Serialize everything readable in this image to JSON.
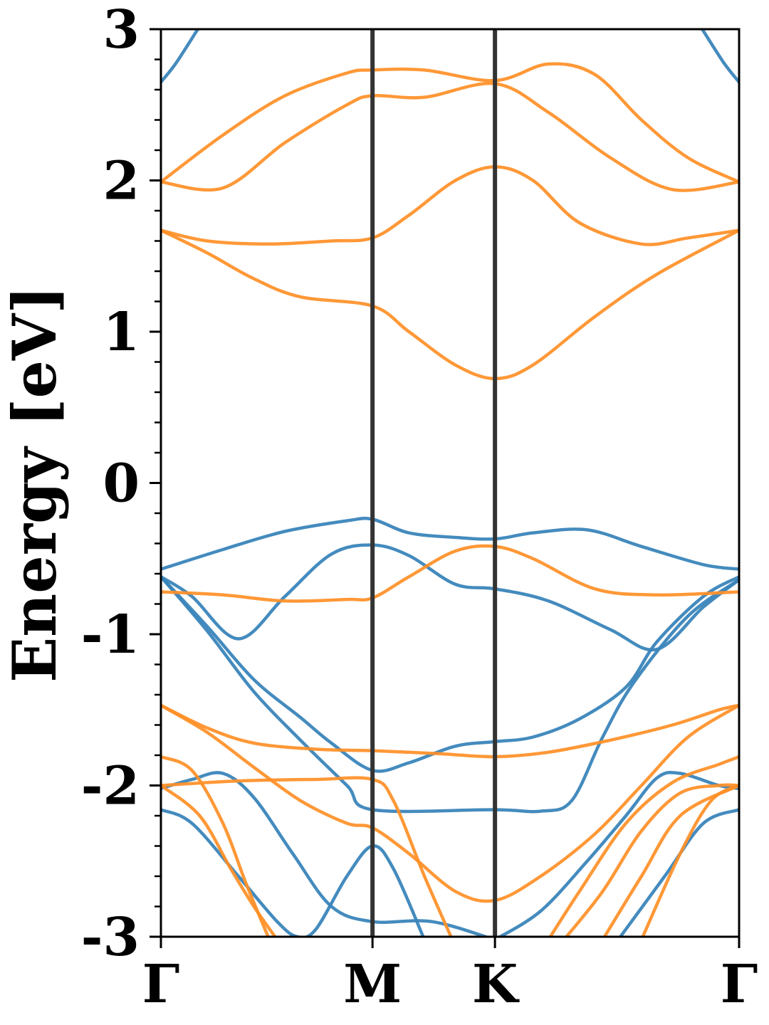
{
  "chart_data": {
    "type": "line",
    "title": "",
    "xlabel": "",
    "ylabel": "Energy [eV]",
    "ylim": [
      -3,
      3
    ],
    "xlim": [
      0,
      3.73
    ],
    "grid": false,
    "legend": "none",
    "y_ticks": [
      {
        "value": -3,
        "label": "-3"
      },
      {
        "value": -2,
        "label": "-2"
      },
      {
        "value": -1,
        "label": "-1"
      },
      {
        "value": 0,
        "label": "0"
      },
      {
        "value": 1,
        "label": "1"
      },
      {
        "value": 2,
        "label": "2"
      },
      {
        "value": 3,
        "label": "3"
      }
    ],
    "k_points": [
      {
        "label": "Γ",
        "x": 0
      },
      {
        "label": "M",
        "x": 1.365
      },
      {
        "label": "K",
        "x": 2.155
      },
      {
        "label": "Γ",
        "x": 3.73
      }
    ],
    "colors": {
      "band_a": "#3a85bb",
      "band_b": "#ff8f26",
      "divider": "#333333"
    },
    "series": [
      {
        "color_key": "band_a",
        "points": [
          [
            0,
            -0.57
          ],
          [
            0.4,
            -0.44
          ],
          [
            0.8,
            -0.32
          ],
          [
            1.2,
            -0.25
          ],
          [
            1.365,
            -0.24
          ],
          [
            1.6,
            -0.33
          ],
          [
            1.9,
            -0.36
          ],
          [
            2.155,
            -0.37
          ],
          [
            2.4,
            -0.33
          ],
          [
            2.75,
            -0.31
          ],
          [
            3.1,
            -0.42
          ],
          [
            3.5,
            -0.54
          ],
          [
            3.73,
            -0.57
          ]
        ]
      },
      {
        "color_key": "band_a",
        "points": [
          [
            0,
            -0.62
          ],
          [
            0.2,
            -0.75
          ],
          [
            0.5,
            -1.03
          ],
          [
            0.8,
            -0.75
          ],
          [
            1.1,
            -0.47
          ],
          [
            1.365,
            -0.41
          ],
          [
            1.6,
            -0.48
          ],
          [
            1.9,
            -0.67
          ],
          [
            2.155,
            -0.7
          ],
          [
            2.5,
            -0.78
          ],
          [
            2.9,
            -0.97
          ],
          [
            3.2,
            -1.1
          ],
          [
            3.5,
            -0.82
          ],
          [
            3.73,
            -0.64
          ]
        ]
      },
      {
        "color_key": "band_a",
        "points": [
          [
            0,
            -0.62
          ],
          [
            0.3,
            -0.95
          ],
          [
            0.6,
            -1.3
          ],
          [
            0.9,
            -1.55
          ],
          [
            1.1,
            -1.72
          ],
          [
            1.365,
            -1.9
          ],
          [
            1.6,
            -1.85
          ],
          [
            1.9,
            -1.74
          ],
          [
            2.155,
            -1.71
          ],
          [
            2.4,
            -1.68
          ],
          [
            2.7,
            -1.56
          ],
          [
            3.0,
            -1.35
          ],
          [
            3.2,
            -1.05
          ],
          [
            3.5,
            -0.75
          ],
          [
            3.73,
            -0.62
          ]
        ]
      },
      {
        "color_key": "band_a",
        "points": [
          [
            0,
            -0.62
          ],
          [
            0.3,
            -0.98
          ],
          [
            0.6,
            -1.38
          ],
          [
            0.9,
            -1.7
          ],
          [
            1.2,
            -2.0
          ],
          [
            1.365,
            -2.16
          ],
          [
            2.155,
            -2.16
          ],
          [
            2.45,
            -2.17
          ],
          [
            2.65,
            -2.1
          ],
          [
            2.85,
            -1.68
          ],
          [
            3.05,
            -1.32
          ],
          [
            3.4,
            -0.88
          ],
          [
            3.73,
            -0.64
          ]
        ]
      },
      {
        "color_key": "band_a",
        "points": [
          [
            0,
            -2.02
          ],
          [
            0.2,
            -1.96
          ],
          [
            0.4,
            -1.92
          ],
          [
            0.6,
            -2.08
          ],
          [
            0.85,
            -2.45
          ],
          [
            1.1,
            -2.8
          ],
          [
            1.365,
            -2.9
          ],
          [
            1.75,
            -2.9
          ],
          [
            2.155,
            -3.02
          ]
        ]
      },
      {
        "color_key": "band_a",
        "points": [
          [
            2.155,
            -3.02
          ],
          [
            2.45,
            -2.83
          ],
          [
            2.75,
            -2.5
          ],
          [
            3.0,
            -2.2
          ],
          [
            3.2,
            -1.95
          ],
          [
            3.35,
            -1.92
          ],
          [
            3.6,
            -2.0
          ],
          [
            3.73,
            -2.02
          ]
        ]
      },
      {
        "color_key": "band_a",
        "points": [
          [
            0,
            -2.16
          ],
          [
            0.2,
            -2.25
          ],
          [
            0.5,
            -2.6
          ],
          [
            0.75,
            -2.9
          ],
          [
            0.88,
            -3.0
          ],
          [
            1.0,
            -2.95
          ],
          [
            1.2,
            -2.6
          ],
          [
            1.365,
            -2.4
          ],
          [
            1.5,
            -2.55
          ],
          [
            1.7,
            -3.02
          ]
        ]
      },
      {
        "color_key": "band_a",
        "points": [
          [
            2.95,
            -3.02
          ],
          [
            3.25,
            -2.6
          ],
          [
            3.5,
            -2.25
          ],
          [
            3.73,
            -2.16
          ]
        ]
      },
      {
        "color_key": "band_a",
        "points": [
          [
            0,
            2.65
          ],
          [
            0.1,
            2.78
          ],
          [
            0.25,
            3.02
          ]
        ]
      },
      {
        "color_key": "band_a",
        "points": [
          [
            3.48,
            3.02
          ],
          [
            3.63,
            2.78
          ],
          [
            3.73,
            2.65
          ]
        ]
      },
      {
        "color_key": "band_b",
        "points": [
          [
            0,
            1.99
          ],
          [
            0.4,
            2.3
          ],
          [
            0.8,
            2.56
          ],
          [
            1.2,
            2.71
          ],
          [
            1.365,
            2.73
          ],
          [
            1.7,
            2.73
          ],
          [
            2.155,
            2.66
          ],
          [
            2.5,
            2.77
          ],
          [
            2.8,
            2.7
          ],
          [
            3.1,
            2.4
          ],
          [
            3.4,
            2.15
          ],
          [
            3.73,
            1.99
          ]
        ]
      },
      {
        "color_key": "band_b",
        "points": [
          [
            0,
            1.99
          ],
          [
            0.4,
            1.95
          ],
          [
            0.8,
            2.25
          ],
          [
            1.2,
            2.5
          ],
          [
            1.365,
            2.56
          ],
          [
            1.7,
            2.55
          ],
          [
            2.155,
            2.64
          ],
          [
            2.5,
            2.45
          ],
          [
            2.9,
            2.15
          ],
          [
            3.3,
            1.94
          ],
          [
            3.73,
            1.99
          ]
        ]
      },
      {
        "color_key": "band_b",
        "points": [
          [
            0,
            1.67
          ],
          [
            0.3,
            1.6
          ],
          [
            0.7,
            1.58
          ],
          [
            1.1,
            1.6
          ],
          [
            1.365,
            1.62
          ],
          [
            1.6,
            1.77
          ],
          [
            1.9,
            2.0
          ],
          [
            2.155,
            2.09
          ],
          [
            2.4,
            2.0
          ],
          [
            2.7,
            1.72
          ],
          [
            3.1,
            1.58
          ],
          [
            3.4,
            1.62
          ],
          [
            3.73,
            1.67
          ]
        ]
      },
      {
        "color_key": "band_b",
        "points": [
          [
            0,
            1.67
          ],
          [
            0.3,
            1.52
          ],
          [
            0.6,
            1.35
          ],
          [
            0.9,
            1.23
          ],
          [
            1.365,
            1.17
          ],
          [
            1.6,
            1.0
          ],
          [
            1.9,
            0.78
          ],
          [
            2.155,
            0.69
          ],
          [
            2.4,
            0.78
          ],
          [
            2.8,
            1.1
          ],
          [
            3.2,
            1.38
          ],
          [
            3.73,
            1.67
          ]
        ]
      },
      {
        "color_key": "band_b",
        "points": [
          [
            0,
            -0.72
          ],
          [
            0.4,
            -0.74
          ],
          [
            0.8,
            -0.78
          ],
          [
            1.2,
            -0.77
          ],
          [
            1.365,
            -0.76
          ],
          [
            1.6,
            -0.62
          ],
          [
            1.9,
            -0.45
          ],
          [
            2.155,
            -0.42
          ],
          [
            2.4,
            -0.5
          ],
          [
            2.8,
            -0.7
          ],
          [
            3.2,
            -0.74
          ],
          [
            3.73,
            -0.72
          ]
        ]
      },
      {
        "color_key": "band_b",
        "points": [
          [
            0,
            -1.47
          ],
          [
            0.3,
            -1.62
          ],
          [
            0.6,
            -1.72
          ],
          [
            1.0,
            -1.76
          ],
          [
            1.365,
            -1.77
          ],
          [
            1.8,
            -1.79
          ],
          [
            2.155,
            -1.81
          ],
          [
            2.5,
            -1.78
          ],
          [
            2.9,
            -1.7
          ],
          [
            3.3,
            -1.6
          ],
          [
            3.6,
            -1.5
          ],
          [
            3.73,
            -1.47
          ]
        ]
      },
      {
        "color_key": "band_b",
        "points": [
          [
            0,
            -1.47
          ],
          [
            0.3,
            -1.65
          ],
          [
            0.6,
            -1.88
          ],
          [
            0.9,
            -2.1
          ],
          [
            1.2,
            -2.25
          ],
          [
            1.365,
            -2.28
          ],
          [
            1.6,
            -2.45
          ],
          [
            1.9,
            -2.7
          ],
          [
            2.155,
            -2.76
          ],
          [
            2.45,
            -2.6
          ],
          [
            2.8,
            -2.32
          ],
          [
            3.1,
            -2.0
          ],
          [
            3.4,
            -1.68
          ],
          [
            3.73,
            -1.47
          ]
        ]
      },
      {
        "color_key": "band_b",
        "points": [
          [
            0,
            -1.81
          ],
          [
            0.2,
            -1.9
          ],
          [
            0.4,
            -2.25
          ],
          [
            0.55,
            -2.65
          ],
          [
            0.7,
            -3.02
          ]
        ]
      },
      {
        "color_key": "band_b",
        "points": [
          [
            2.5,
            -3.02
          ],
          [
            2.7,
            -2.7
          ],
          [
            3.0,
            -2.25
          ],
          [
            3.3,
            -1.98
          ],
          [
            3.6,
            -1.86
          ],
          [
            3.73,
            -1.81
          ]
        ]
      },
      {
        "color_key": "band_b",
        "points": [
          [
            0,
            -2.0
          ],
          [
            0.5,
            -1.97
          ],
          [
            1.0,
            -1.96
          ],
          [
            1.365,
            -1.96
          ],
          [
            1.5,
            -2.1
          ],
          [
            1.7,
            -2.6
          ],
          [
            1.88,
            -3.02
          ]
        ]
      },
      {
        "color_key": "band_b",
        "points": [
          [
            0,
            -2.0
          ],
          [
            0.25,
            -2.2
          ],
          [
            0.45,
            -2.55
          ],
          [
            0.6,
            -2.8
          ],
          [
            0.75,
            -3.02
          ]
        ]
      },
      {
        "color_key": "band_b",
        "points": [
          [
            2.6,
            -3.02
          ],
          [
            2.85,
            -2.7
          ],
          [
            3.1,
            -2.3
          ],
          [
            3.35,
            -2.05
          ],
          [
            3.6,
            -2.0
          ],
          [
            3.73,
            -2.0
          ]
        ]
      },
      {
        "color_key": "band_b",
        "points": [
          [
            2.85,
            -3.02
          ],
          [
            3.1,
            -2.6
          ],
          [
            3.35,
            -2.2
          ],
          [
            3.73,
            -2.0
          ]
        ]
      },
      {
        "color_key": "band_b",
        "points": [
          [
            3.1,
            -3.02
          ],
          [
            3.35,
            -2.45
          ],
          [
            3.55,
            -2.1
          ],
          [
            3.73,
            -2.0
          ]
        ]
      }
    ]
  }
}
